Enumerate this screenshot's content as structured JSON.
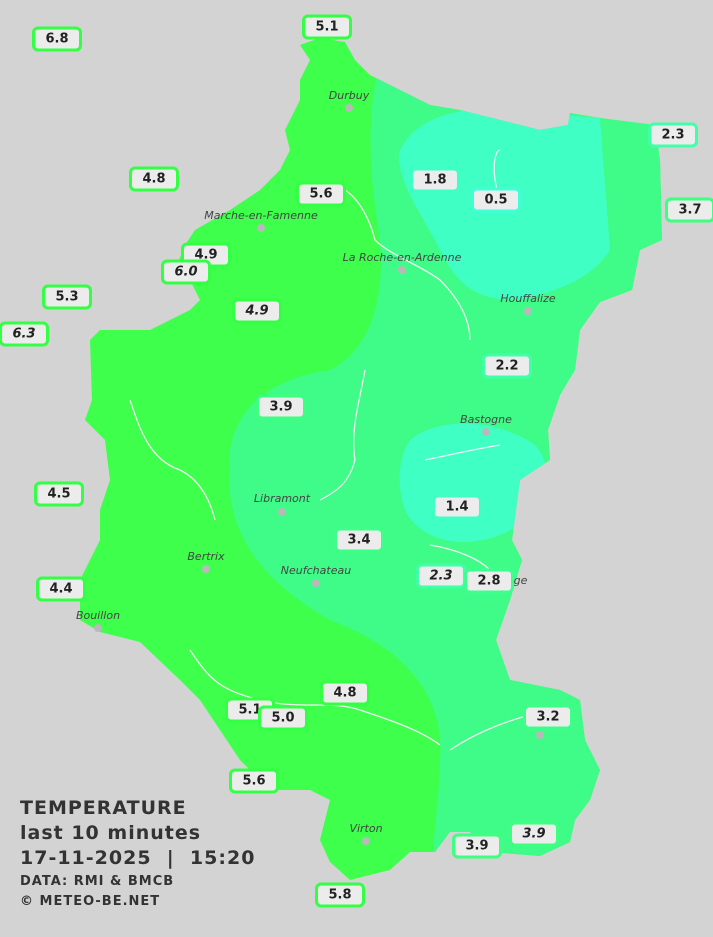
{
  "legend": {
    "title": "TEMPERATURE",
    "period": "last 10 minutes",
    "datetime": "17-11-2025  |  15:20",
    "source": "DATA: RMI & BMCB",
    "copyright": "© METEO-BE.NET"
  },
  "colors": {
    "background": "#d3d3d3",
    "zone_warm": "#3dff4c",
    "zone_mild": "#3ffc88",
    "zone_cool": "#40ffc4",
    "label_bg": "#ececec"
  },
  "cities": [
    "Durbuy",
    "Marche-en-Famenne",
    "La Roche-en-Ardenne",
    "Houffalize",
    "Bastogne",
    "Libramont",
    "Bertrix",
    "Neufchateau",
    "Bouillon",
    "Virton",
    "nge"
  ],
  "stations": [
    {
      "value": "6.8",
      "italic": false,
      "border": "#33ff44"
    },
    {
      "value": "5.1",
      "italic": false,
      "border": "#33ff44"
    },
    {
      "value": "4.8",
      "italic": false,
      "border": "#33ff44"
    },
    {
      "value": "1.8",
      "italic": false,
      "border": "#40ffc4"
    },
    {
      "value": "0.5",
      "italic": false,
      "border": "#40ffd8"
    },
    {
      "value": "2.3",
      "italic": false,
      "border": "#40ffa8"
    },
    {
      "value": "3.7",
      "italic": false,
      "border": "#3dff80"
    },
    {
      "value": "5.6",
      "italic": false,
      "border": "#33ff44"
    },
    {
      "value": "4.9",
      "italic": false,
      "border": "#33ff44"
    },
    {
      "value": "6.0",
      "italic": true,
      "border": "#33ff44"
    },
    {
      "value": "5.3",
      "italic": false,
      "border": "#33ff44"
    },
    {
      "value": "6.3",
      "italic": true,
      "border": "#33ff44"
    },
    {
      "value": "4.9",
      "italic": true,
      "border": "#33ff44"
    },
    {
      "value": "2.2",
      "italic": false,
      "border": "#40ffa8"
    },
    {
      "value": "3.9",
      "italic": false,
      "border": "#3dff80"
    },
    {
      "value": "1.4",
      "italic": false,
      "border": "#40ffc4"
    },
    {
      "value": "4.5",
      "italic": false,
      "border": "#33ff44"
    },
    {
      "value": "3.4",
      "italic": false,
      "border": "#3dff88"
    },
    {
      "value": "2.3",
      "italic": true,
      "border": "#40ffa8"
    },
    {
      "value": "2.8",
      "italic": false,
      "border": "#3dff90"
    },
    {
      "value": "4.4",
      "italic": false,
      "border": "#33ff44"
    },
    {
      "value": "4.8",
      "italic": false,
      "border": "#33ff44"
    },
    {
      "value": "5.1",
      "italic": false,
      "border": "#33ff44"
    },
    {
      "value": "5.0",
      "italic": false,
      "border": "#33ff44"
    },
    {
      "value": "3.2",
      "italic": false,
      "border": "#3dff88"
    },
    {
      "value": "5.6",
      "italic": false,
      "border": "#33ff44"
    },
    {
      "value": "3.9",
      "italic": false,
      "border": "#3dff80"
    },
    {
      "value": "3.9",
      "italic": true,
      "border": "#3dff80"
    },
    {
      "value": "5.8",
      "italic": false,
      "border": "#33ff44"
    }
  ]
}
